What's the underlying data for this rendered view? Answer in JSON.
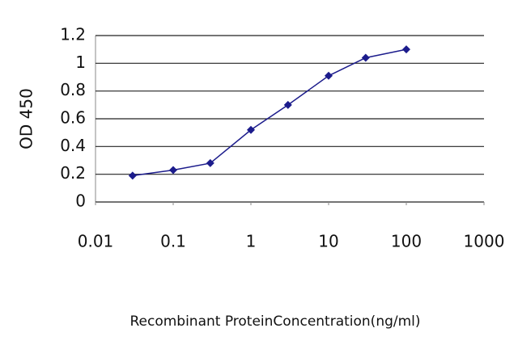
{
  "chart_data": {
    "type": "line",
    "title": null,
    "x_label": "Recombinant ProteinConcentration(ng/ml)",
    "y_label": "OD 450",
    "x": [
      0.03,
      0.1,
      0.3,
      1,
      3,
      10,
      30,
      100
    ],
    "series": [
      {
        "name": null,
        "color": "#1c1c8c",
        "values": [
          0.19,
          0.23,
          0.28,
          0.52,
          0.7,
          0.91,
          1.04,
          1.1
        ]
      }
    ],
    "xscale": "log",
    "xlim": [
      0.01,
      1000
    ],
    "xticks": [
      0.01,
      0.1,
      1,
      10,
      100,
      1000
    ],
    "ylim": [
      0,
      1.2
    ],
    "yticks": [
      0,
      0.2,
      0.4,
      0.6,
      0.8,
      1,
      1.2
    ],
    "grid": true
  }
}
